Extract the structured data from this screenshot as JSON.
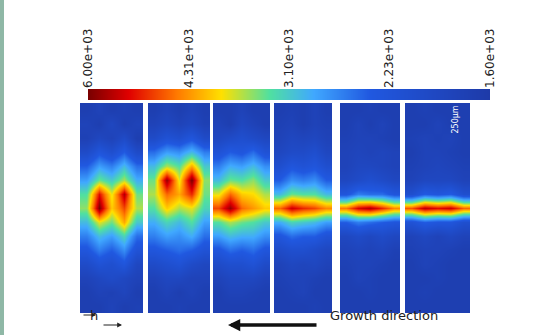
{
  "chart_data": {
    "type": "heatmap",
    "log": true,
    "colorbar": {
      "range": [
        1600,
        6000
      ],
      "ticks": [
        {
          "value": 6000,
          "label": "6.00e+03"
        },
        {
          "value": 4310,
          "label": "4.31e+03"
        },
        {
          "value": 3100,
          "label": "3.10e+03"
        },
        {
          "value": 2230,
          "label": "2.23e+03"
        },
        {
          "value": 1600,
          "label": "1.60e+03"
        }
      ]
    },
    "panels": [
      {
        "cells": [
          [
            1700,
            1800,
            1700,
            1750,
            1700
          ],
          [
            1800,
            1700,
            1900,
            1700,
            1800
          ],
          [
            1750,
            1900,
            1800,
            2000,
            1700
          ],
          [
            2000,
            2300,
            2100,
            2400,
            2000
          ],
          [
            2400,
            2800,
            2600,
            3000,
            2500
          ],
          [
            2800,
            3400,
            3100,
            3600,
            2900
          ],
          [
            3300,
            5200,
            3800,
            5600,
            3400
          ],
          [
            3500,
            6000,
            4000,
            4800,
            3600
          ],
          [
            3000,
            3800,
            3400,
            4200,
            3100
          ],
          [
            2600,
            3000,
            2800,
            3200,
            2500
          ],
          [
            2300,
            2600,
            2400,
            2700,
            2200
          ],
          [
            2000,
            2200,
            2100,
            2300,
            1900
          ],
          [
            1800,
            1900,
            2000,
            1900,
            1800
          ],
          [
            1700,
            1800,
            1750,
            1850,
            1700
          ],
          [
            1700,
            1700,
            1800,
            1700,
            1750
          ]
        ]
      },
      {
        "cells": [
          [
            1700,
            1800,
            1700,
            1800,
            1700
          ],
          [
            1800,
            1900,
            1800,
            1900,
            1750
          ],
          [
            2000,
            2200,
            2100,
            2300,
            2000
          ],
          [
            2500,
            2800,
            2700,
            3000,
            2600
          ],
          [
            3000,
            3600,
            3300,
            4200,
            3100
          ],
          [
            3400,
            5800,
            3800,
            6000,
            3500
          ],
          [
            3600,
            4600,
            4200,
            5000,
            3400
          ],
          [
            3300,
            4000,
            3600,
            3800,
            3200
          ],
          [
            2900,
            3200,
            3000,
            3300,
            2800
          ],
          [
            2600,
            2800,
            2700,
            2900,
            2500
          ],
          [
            2300,
            2400,
            2500,
            2400,
            2200
          ],
          [
            2000,
            2100,
            2200,
            2000,
            1900
          ],
          [
            1800,
            1900,
            1900,
            1800,
            1800
          ],
          [
            1700,
            1800,
            1700,
            1800,
            1700
          ],
          [
            1700,
            1700,
            1750,
            1700,
            1700
          ]
        ]
      },
      {
        "cells": [
          [
            1700,
            1700,
            1800,
            1700,
            1700
          ],
          [
            1800,
            1700,
            1900,
            1800,
            1700
          ],
          [
            1900,
            2000,
            2100,
            2000,
            1900
          ],
          [
            2200,
            2400,
            2300,
            2500,
            2200
          ],
          [
            2600,
            2900,
            2800,
            3000,
            2700
          ],
          [
            3000,
            3400,
            3300,
            3500,
            3100
          ],
          [
            3800,
            4600,
            4000,
            3900,
            3600
          ],
          [
            4800,
            5800,
            4600,
            4300,
            4000
          ],
          [
            3300,
            3600,
            3400,
            3300,
            3100
          ],
          [
            2800,
            3000,
            2900,
            2900,
            2700
          ],
          [
            2300,
            2500,
            2400,
            2500,
            2300
          ],
          [
            2000,
            2100,
            2100,
            2200,
            2000
          ],
          [
            1800,
            1900,
            1900,
            1900,
            1800
          ],
          [
            1700,
            1800,
            1800,
            1750,
            1700
          ],
          [
            1700,
            1700,
            1700,
            1700,
            1700
          ]
        ]
      },
      {
        "cells": [
          [
            1700,
            1750,
            1700,
            1800,
            1700
          ],
          [
            1750,
            1800,
            1700,
            1800,
            1750
          ],
          [
            1800,
            1900,
            1850,
            1900,
            1800
          ],
          [
            1900,
            2000,
            2000,
            2100,
            1900
          ],
          [
            2100,
            2300,
            2200,
            2300,
            2100
          ],
          [
            2400,
            2700,
            2600,
            2700,
            2400
          ],
          [
            3000,
            3400,
            3300,
            3300,
            3000
          ],
          [
            4600,
            5400,
            5000,
            4800,
            4400
          ],
          [
            2900,
            3200,
            3100,
            3000,
            2800
          ],
          [
            2300,
            2500,
            2400,
            2400,
            2200
          ],
          [
            2000,
            2100,
            2100,
            2000,
            1900
          ],
          [
            1800,
            1900,
            1850,
            1900,
            1800
          ],
          [
            1750,
            1800,
            1800,
            1750,
            1700
          ],
          [
            1700,
            1750,
            1800,
            1700,
            1700
          ],
          [
            1700,
            1700,
            1700,
            1750,
            1700
          ]
        ]
      },
      {
        "cells": [
          [
            1700,
            1700,
            1750,
            1700,
            1700
          ],
          [
            1700,
            1800,
            1700,
            1800,
            1700
          ],
          [
            1750,
            1800,
            1800,
            1750,
            1700
          ],
          [
            1800,
            1850,
            1800,
            1850,
            1800
          ],
          [
            1800,
            1900,
            1900,
            1850,
            1800
          ],
          [
            1900,
            2000,
            2100,
            2000,
            1900
          ],
          [
            2300,
            2600,
            2500,
            2500,
            2300
          ],
          [
            4500,
            5300,
            5600,
            5000,
            4400
          ],
          [
            2400,
            2600,
            2500,
            2400,
            2300
          ],
          [
            1900,
            2000,
            1900,
            2000,
            1900
          ],
          [
            1800,
            1850,
            1800,
            1850,
            1750
          ],
          [
            1750,
            1800,
            1800,
            1750,
            1700
          ],
          [
            1700,
            1800,
            1750,
            1700,
            1700
          ],
          [
            1700,
            1700,
            1750,
            1700,
            1700
          ],
          [
            1700,
            1700,
            1700,
            1700,
            1700
          ]
        ]
      },
      {
        "cells": [
          [
            1700,
            1750,
            1700,
            1700,
            1700
          ],
          [
            1700,
            1700,
            1800,
            1700,
            1700
          ],
          [
            1750,
            1800,
            1750,
            1800,
            1700
          ],
          [
            1700,
            1800,
            1800,
            1750,
            1700
          ],
          [
            1750,
            1800,
            1850,
            1800,
            1750
          ],
          [
            1800,
            1900,
            1900,
            1900,
            1800
          ],
          [
            2100,
            2400,
            2300,
            2400,
            2100
          ],
          [
            4700,
            5500,
            5200,
            5400,
            4600
          ],
          [
            2200,
            2400,
            2300,
            2300,
            2100
          ],
          [
            1800,
            1900,
            1800,
            1900,
            1800
          ],
          [
            1750,
            1800,
            1800,
            1750,
            1700
          ],
          [
            1700,
            1800,
            1750,
            1700,
            1700
          ],
          [
            1700,
            1700,
            1750,
            1700,
            1700
          ],
          [
            1700,
            1750,
            1700,
            1700,
            1700
          ],
          [
            1700,
            1700,
            1700,
            1700,
            1700
          ]
        ]
      }
    ],
    "scale_bar": "250μm",
    "vector_label": "h",
    "direction_label": "Growth direction"
  }
}
